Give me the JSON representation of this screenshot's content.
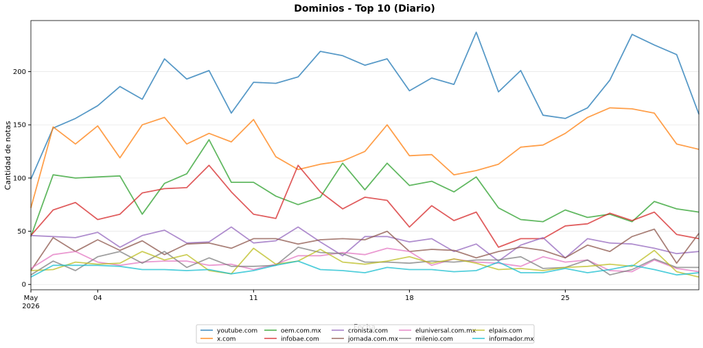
{
  "chart_data": {
    "type": "line",
    "title": "Dominios - Top 10 (Diario)",
    "xlabel": "Fecha",
    "ylabel": "Cantidad de notas",
    "x": [
      "2026-05-01",
      "2026-05-02",
      "2026-05-03",
      "2026-05-04",
      "2026-05-05",
      "2026-05-06",
      "2026-05-07",
      "2026-05-08",
      "2026-05-09",
      "2026-05-10",
      "2026-05-11",
      "2026-05-12",
      "2026-05-13",
      "2026-05-14",
      "2026-05-15",
      "2026-05-16",
      "2026-05-17",
      "2026-05-18",
      "2026-05-19",
      "2026-05-20",
      "2026-05-21",
      "2026-05-22",
      "2026-05-23",
      "2026-05-24",
      "2026-05-25",
      "2026-05-26",
      "2026-05-27",
      "2026-05-28",
      "2026-05-29",
      "2026-05-30",
      "2026-05-31"
    ],
    "xlim": [
      "2026-05-01",
      "2026-05-31"
    ],
    "xticks": [
      {
        "value": "2026-05-01",
        "label": "May 2026"
      },
      {
        "value": "2026-05-04",
        "label": "04"
      },
      {
        "value": "2026-05-11",
        "label": "11"
      },
      {
        "value": "2026-05-18",
        "label": "18"
      },
      {
        "value": "2026-05-25",
        "label": "25"
      }
    ],
    "ylim": [
      -5,
      248
    ],
    "yticks": [
      0,
      50,
      100,
      150,
      200
    ],
    "grid": true,
    "legend": "bottom",
    "series": [
      {
        "name": "youtube.com",
        "color": "#1f77b4",
        "values": [
          99,
          147,
          156,
          168,
          186,
          174,
          212,
          193,
          201,
          161,
          190,
          189,
          195,
          219,
          215,
          206,
          212,
          182,
          194,
          188,
          237,
          181,
          201,
          159,
          156,
          166,
          192,
          235,
          225,
          216,
          160
        ]
      },
      {
        "name": "x.com",
        "color": "#ff7f0e",
        "values": [
          72,
          148,
          132,
          149,
          119,
          150,
          157,
          132,
          142,
          134,
          155,
          120,
          108,
          113,
          116,
          125,
          150,
          121,
          122,
          103,
          107,
          113,
          129,
          131,
          142,
          157,
          166,
          165,
          161,
          132,
          127
        ]
      },
      {
        "name": "oem.com.mx",
        "color": "#2ca02c",
        "values": [
          45,
          103,
          100,
          101,
          102,
          66,
          95,
          104,
          136,
          96,
          96,
          83,
          75,
          82,
          114,
          89,
          114,
          93,
          97,
          87,
          101,
          72,
          61,
          59,
          70,
          63,
          66,
          59,
          78,
          71,
          68
        ]
      },
      {
        "name": "infobae.com",
        "color": "#d62728",
        "values": [
          46,
          70,
          77,
          61,
          66,
          86,
          90,
          91,
          112,
          87,
          66,
          62,
          112,
          87,
          71,
          82,
          79,
          54,
          74,
          60,
          68,
          35,
          43,
          43,
          55,
          57,
          67,
          60,
          68,
          47,
          43
        ]
      },
      {
        "name": "cronista.com",
        "color": "#9467bd",
        "values": [
          46,
          45,
          44,
          49,
          35,
          46,
          51,
          39,
          40,
          54,
          39,
          41,
          54,
          40,
          27,
          45,
          45,
          40,
          43,
          31,
          38,
          22,
          37,
          44,
          25,
          43,
          39,
          38,
          34,
          29,
          31
        ]
      },
      {
        "name": "jornada.com.mx",
        "color": "#8c564b",
        "values": [
          13,
          44,
          31,
          42,
          32,
          41,
          28,
          38,
          39,
          34,
          43,
          43,
          38,
          42,
          43,
          42,
          50,
          31,
          33,
          32,
          25,
          31,
          35,
          32,
          25,
          37,
          31,
          45,
          52,
          20,
          48
        ]
      },
      {
        "name": "eluniversal.com.mx",
        "color": "#e377c2",
        "values": [
          15,
          28,
          31,
          21,
          18,
          21,
          22,
          22,
          18,
          19,
          14,
          19,
          27,
          27,
          30,
          28,
          34,
          31,
          18,
          24,
          21,
          20,
          17,
          26,
          21,
          23,
          13,
          12,
          23,
          15,
          12
        ]
      },
      {
        "name": "milenio.com",
        "color": "#7f7f7f",
        "values": [
          9,
          22,
          13,
          26,
          31,
          20,
          31,
          16,
          25,
          17,
          17,
          18,
          35,
          30,
          29,
          21,
          21,
          20,
          22,
          21,
          23,
          23,
          26,
          15,
          16,
          23,
          9,
          14,
          24,
          16,
          16
        ]
      },
      {
        "name": "elpais.com",
        "color": "#bcbd22",
        "values": [
          13,
          14,
          21,
          19,
          20,
          31,
          23,
          28,
          13,
          10,
          34,
          19,
          22,
          33,
          21,
          19,
          22,
          26,
          20,
          24,
          20,
          14,
          15,
          13,
          16,
          17,
          19,
          17,
          32,
          12,
          7
        ]
      },
      {
        "name": "informador.mx",
        "color": "#17becf",
        "values": [
          7,
          18,
          18,
          18,
          17,
          14,
          14,
          13,
          14,
          10,
          13,
          18,
          22,
          14,
          13,
          11,
          16,
          14,
          14,
          12,
          13,
          21,
          11,
          11,
          15,
          11,
          14,
          18,
          14,
          9,
          11
        ]
      }
    ]
  }
}
